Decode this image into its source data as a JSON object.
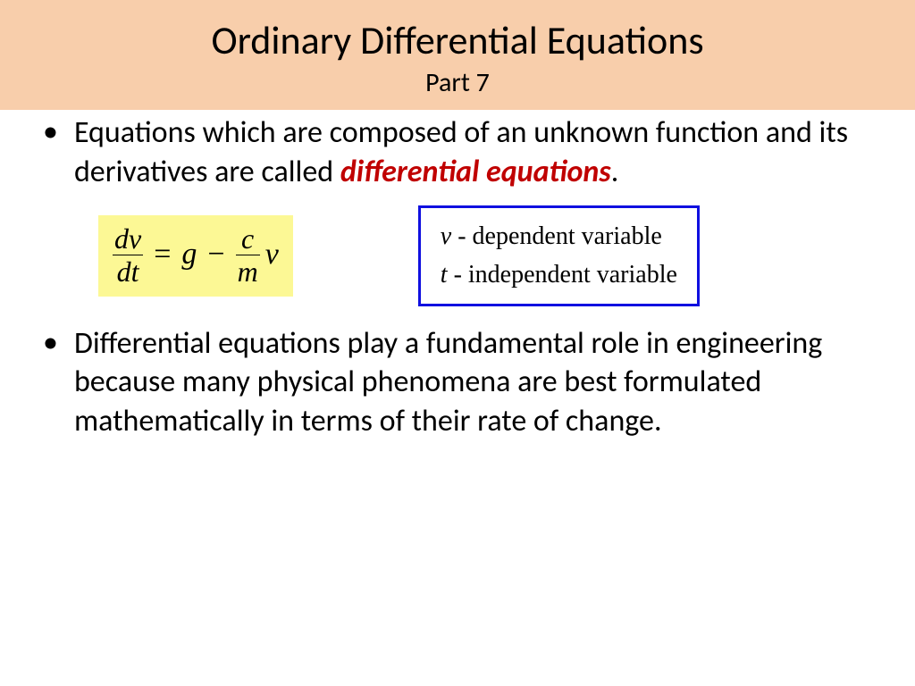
{
  "header": {
    "title": "Ordinary Differential Equations",
    "subtitle": "Part 7",
    "background_color": "#f8ceab",
    "title_fontsize": 44,
    "subtitle_fontsize": 30
  },
  "bullets": [
    {
      "text_plain": "Equations which are composed of an unknown function and its derivatives are called ",
      "emphasis": "differential equations",
      "tail": "."
    },
    {
      "text_plain": "Differential equations play a fundamental role in engineering because many physical phenomena are best formulated mathematically in terms of their rate of change.",
      "emphasis": "",
      "tail": ""
    }
  ],
  "equation": {
    "background_color": "#fcf895",
    "lhs_num": "dv",
    "lhs_den": "dt",
    "op1": "=",
    "term1": "g",
    "op2": "−",
    "rhs_num": "c",
    "rhs_den": "m",
    "trail": "v",
    "fontsize": 34
  },
  "legend": {
    "border_color": "#1010e0",
    "rows": [
      {
        "var": "v",
        "desc": " - dependent variable"
      },
      {
        "var": "t",
        "desc": " - independent variable"
      }
    ],
    "fontsize": 28
  },
  "colors": {
    "emphasis_text": "#c00000",
    "body_text": "#000000",
    "page_background": "#ffffff"
  }
}
